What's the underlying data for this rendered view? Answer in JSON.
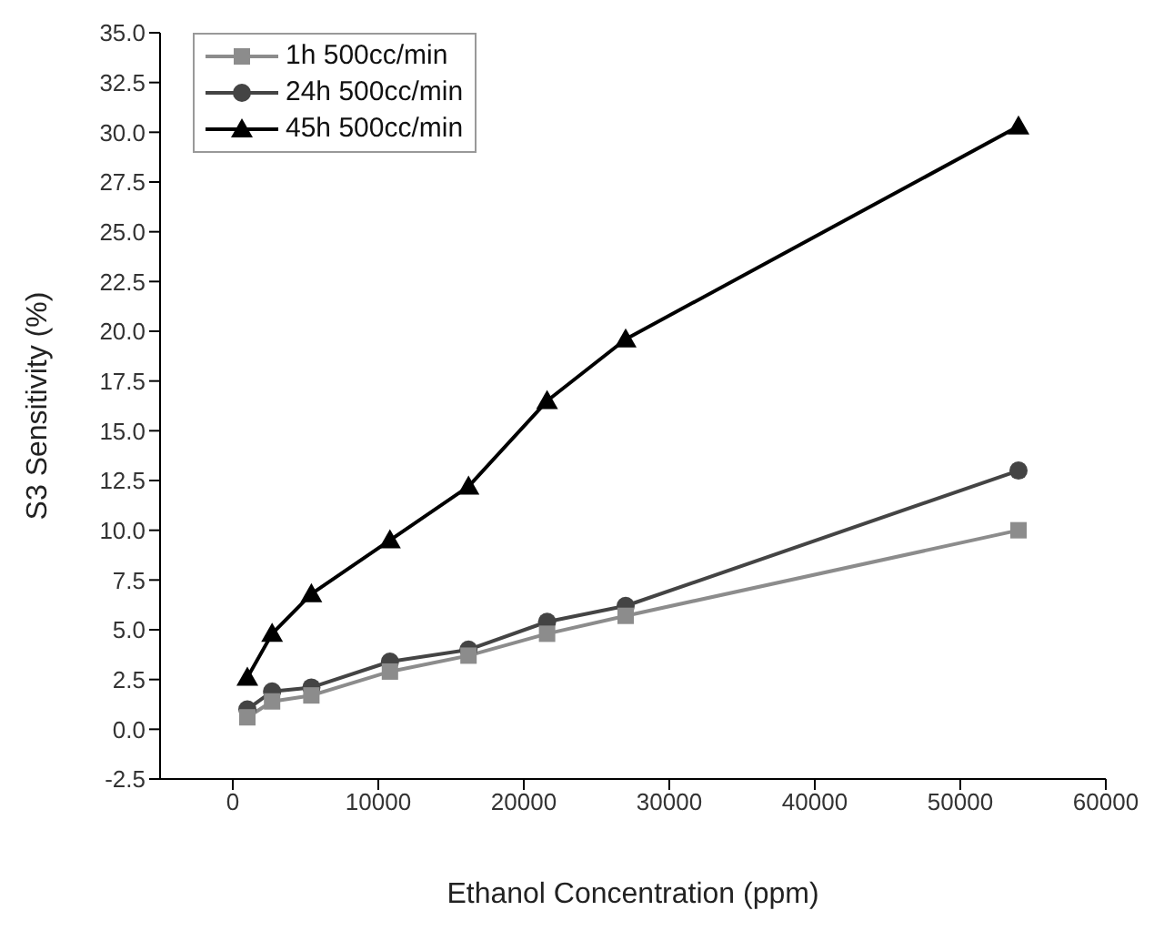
{
  "chart_data": {
    "type": "line",
    "xlabel": "Ethanol Concentration (ppm)",
    "ylabel": "S3 Sensitivity (%)",
    "x": [
      1000,
      2700,
      5400,
      10800,
      16200,
      21600,
      27000,
      54000
    ],
    "series": [
      {
        "name": "1h 500cc/min",
        "color": "#8c8c8c",
        "marker": "square",
        "values": [
          0.6,
          1.4,
          1.7,
          2.9,
          3.7,
          4.8,
          5.7,
          10.0
        ]
      },
      {
        "name": "24h 500cc/min",
        "color": "#444444",
        "marker": "circle",
        "values": [
          1.0,
          1.9,
          2.1,
          3.4,
          4.0,
          5.4,
          6.2,
          13.0
        ]
      },
      {
        "name": "45h 500cc/min",
        "color": "#000000",
        "marker": "triangle",
        "values": [
          2.6,
          4.8,
          6.8,
          9.5,
          12.2,
          16.5,
          19.6,
          30.3
        ]
      }
    ],
    "xlim": [
      -5000,
      60000
    ],
    "xticks": [
      0,
      10000,
      20000,
      30000,
      40000,
      50000,
      60000
    ],
    "ylim": [
      -2.5,
      35
    ],
    "yticks": [
      {
        "value": -2.5,
        "label": "-2.5"
      },
      {
        "value": 0,
        "label": "0.0"
      },
      {
        "value": 2.5,
        "label": "2.5"
      },
      {
        "value": 5,
        "label": "5.0"
      },
      {
        "value": 7.5,
        "label": "7.5"
      },
      {
        "value": 10,
        "label": "10.0"
      },
      {
        "value": 12.5,
        "label": "12.5"
      },
      {
        "value": 15,
        "label": "15.0"
      },
      {
        "value": 17.5,
        "label": "17.5"
      },
      {
        "value": 20,
        "label": "20.0"
      },
      {
        "value": 22.5,
        "label": "22.5"
      },
      {
        "value": 25,
        "label": "25.0"
      },
      {
        "value": 27.5,
        "label": "27.5"
      },
      {
        "value": 30,
        "label": "30.0"
      },
      {
        "value": 32.5,
        "label": "32.5"
      },
      {
        "value": 35,
        "label": "35.0"
      }
    ],
    "grid": false,
    "legend": "top left",
    "line_style": "solid"
  }
}
